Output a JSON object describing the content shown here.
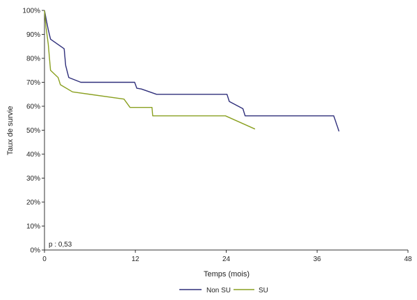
{
  "chart_data": {
    "type": "line",
    "xlabel": "Temps (mois)",
    "ylabel": "Taux de survie",
    "xlim": [
      0,
      48
    ],
    "ylim": [
      0,
      100
    ],
    "x_ticks": [
      "0",
      "12",
      "24",
      "36",
      "48"
    ],
    "y_ticks": [
      "0%",
      "10%",
      "20%",
      "30%",
      "40%",
      "50%",
      "60%",
      "70%",
      "80%",
      "90%",
      "100%"
    ],
    "grid": false,
    "legend_position": "bottom",
    "annotation": "p : 0,53",
    "series": [
      {
        "name": "Non SU",
        "color": "#2e2e7a",
        "points": [
          [
            0,
            100
          ],
          [
            0.3,
            95
          ],
          [
            0.5,
            92
          ],
          [
            0.8,
            88
          ],
          [
            2.6,
            84
          ],
          [
            2.8,
            77
          ],
          [
            3.2,
            72
          ],
          [
            4.8,
            70
          ],
          [
            11.9,
            70
          ],
          [
            12.2,
            67.5
          ],
          [
            12.8,
            67.2
          ],
          [
            14.8,
            65
          ],
          [
            24.1,
            65
          ],
          [
            24.4,
            62
          ],
          [
            26.2,
            59
          ],
          [
            26.5,
            56
          ],
          [
            38.2,
            56
          ],
          [
            38.9,
            49.5
          ]
        ]
      },
      {
        "name": "SU",
        "color": "#8aa020",
        "points": [
          [
            0,
            100
          ],
          [
            0.2,
            93
          ],
          [
            0.5,
            86
          ],
          [
            0.8,
            75
          ],
          [
            1.8,
            72
          ],
          [
            2.1,
            69
          ],
          [
            3.7,
            66
          ],
          [
            10.5,
            63
          ],
          [
            11.3,
            59.5
          ],
          [
            14.2,
            59.5
          ],
          [
            14.3,
            56
          ],
          [
            23.9,
            56
          ],
          [
            27.8,
            50.5
          ]
        ]
      }
    ]
  }
}
